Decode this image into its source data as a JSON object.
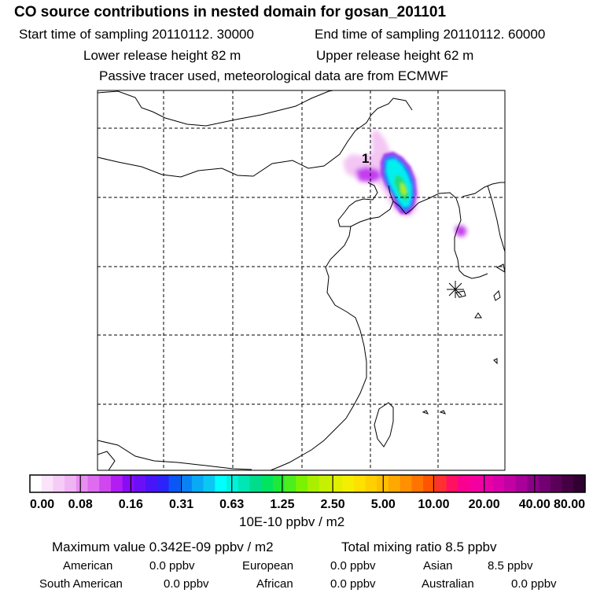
{
  "header": {
    "title": "CO  source contributions in nested domain for gosan_201101",
    "start_sampling": "Start time of sampling 20110112. 30000",
    "end_sampling": "End time of sampling 20110112. 60000",
    "lower_release": "Lower release height   82 m",
    "upper_release": "Upper release height   62 m",
    "tracer_note": "Passive tracer used, meteorological data are from ECMWF"
  },
  "chart_data": {
    "type": "heatmap",
    "title": "CO  source contributions in nested domain for gosan_201101",
    "map_label": "1",
    "colorbar": {
      "tick_labels": [
        "0.00",
        "0.08",
        "0.16",
        "0.31",
        "0.63",
        "1.25",
        "2.50",
        "5.00",
        "10.00",
        "20.00",
        "40.00",
        "80.00"
      ],
      "units": "10E-10 ppbv / m2",
      "colors": [
        "#ffffff",
        "#fbe3fb",
        "#f6cbf6",
        "#f0b3f3",
        "#e88ef0",
        "#dd6cee",
        "#cf47ef",
        "#b21ef2",
        "#8a0cf4",
        "#6a10f6",
        "#4a14f8",
        "#2c22fa",
        "#0a56f6",
        "#0a82f6",
        "#0aa8f5",
        "#0ac8f2",
        "#00ffff",
        "#00f2dc",
        "#00e6b4",
        "#00dc8c",
        "#00e460",
        "#1ee83a",
        "#4cee1e",
        "#7cf200",
        "#a8f000",
        "#c6f000",
        "#e0f000",
        "#f4ee00",
        "#ffe000",
        "#ffd000",
        "#ffbe00",
        "#ffa800",
        "#ff9000",
        "#ff7400",
        "#ff5400",
        "#ff3030",
        "#ff1060",
        "#fa0090",
        "#f400a0",
        "#e800a8",
        "#d800a8",
        "#c200a4",
        "#a80098",
        "#8c0088",
        "#720070",
        "#5a0058",
        "#440042",
        "#300030"
      ]
    }
  },
  "summary": {
    "max_value": "Maximum value  0.342E-09 ppbv / m2",
    "total_mixing": "Total mixing ratio       8.5 ppbv",
    "regions": [
      {
        "name": "American",
        "value": "0.0 ppbv"
      },
      {
        "name": "European",
        "value": "0.0 ppbv"
      },
      {
        "name": "Asian",
        "value": "8.5 ppbv"
      },
      {
        "name": "South American",
        "value": "0.0 ppbv"
      },
      {
        "name": "African",
        "value": "0.0 ppbv"
      },
      {
        "name": "Australian",
        "value": "0.0 ppbv"
      }
    ]
  }
}
